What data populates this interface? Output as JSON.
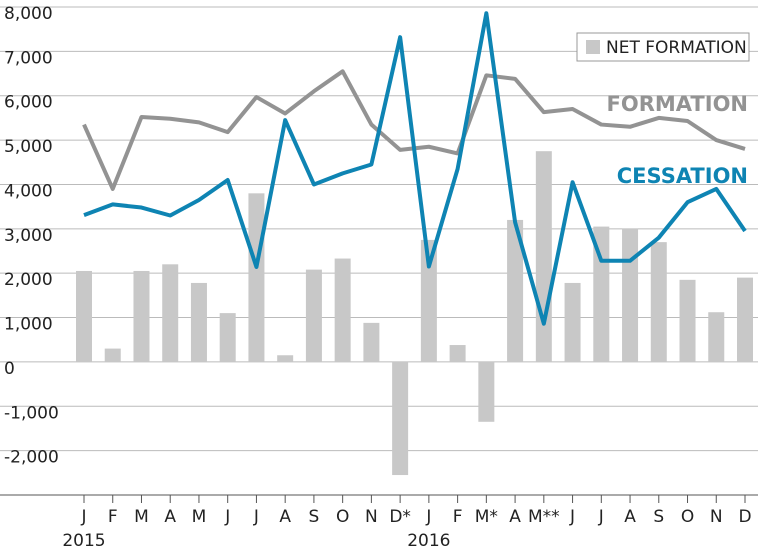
{
  "chart_data": {
    "type": "bar_line",
    "categories": [
      "J",
      "F",
      "M",
      "A",
      "M",
      "J",
      "J",
      "A",
      "S",
      "O",
      "N",
      "D*",
      "J",
      "F",
      "M*",
      "A",
      "M**",
      "J",
      "J",
      "A",
      "S",
      "O",
      "N",
      "D"
    ],
    "year_labels": [
      {
        "index": 0,
        "label": "2015"
      },
      {
        "index": 12,
        "label": "2016"
      }
    ],
    "series": [
      {
        "name": "NET FORMATION",
        "type": "bar",
        "color": "#c8c8c8",
        "values": [
          2050,
          300,
          2050,
          2200,
          1780,
          1100,
          3800,
          150,
          2080,
          2330,
          880,
          -2550,
          2750,
          380,
          -1350,
          3200,
          4750,
          1780,
          3050,
          3000,
          2700,
          1850,
          1120,
          1900
        ]
      },
      {
        "name": "FORMATION",
        "type": "line",
        "color": "#939393",
        "values": [
          5350,
          3900,
          5520,
          5480,
          5400,
          5180,
          5970,
          5600,
          6100,
          6550,
          5350,
          4780,
          4850,
          4700,
          6460,
          6380,
          5630,
          5700,
          5350,
          5300,
          5500,
          5430,
          5000,
          4800
        ]
      },
      {
        "name": "CESSATION",
        "type": "line",
        "color": "#0e84b3",
        "values": [
          3310,
          3550,
          3480,
          3300,
          3650,
          4100,
          2140,
          5450,
          4000,
          4250,
          4450,
          7320,
          2150,
          4350,
          7860,
          3150,
          860,
          4050,
          2280,
          2280,
          2800,
          3600,
          3900,
          2950
        ]
      }
    ],
    "ylim": [
      -3000,
      8000
    ],
    "yticks": [
      {
        "value": -2000,
        "label": "-2,000"
      },
      {
        "value": -1000,
        "label": "-1,000"
      },
      0,
      {
        "value": 1000,
        "label": "1,000"
      },
      {
        "value": 2000,
        "label": "2,000"
      },
      {
        "value": 3000,
        "label": "3,000"
      },
      {
        "value": 4000,
        "label": "4,000"
      },
      {
        "value": 5000,
        "label": "5,000"
      },
      {
        "value": 6000,
        "label": "6,000"
      },
      {
        "value": 7000,
        "label": "7,000"
      },
      {
        "value": 8000,
        "label": "8,000"
      }
    ],
    "grid": true,
    "legend": "upper right"
  }
}
